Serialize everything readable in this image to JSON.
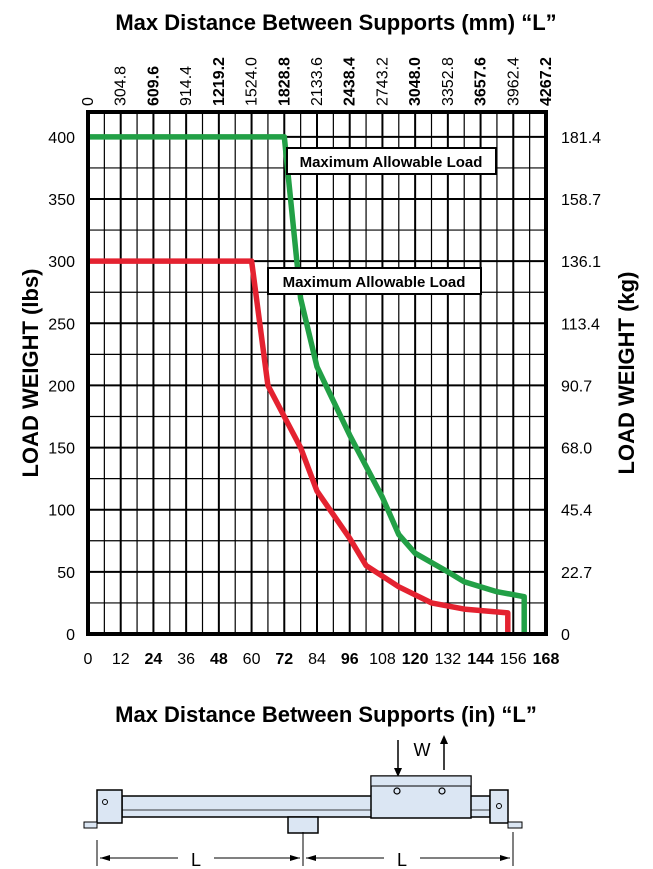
{
  "chart_data": {
    "type": "line",
    "title_top": "Max Distance Between Supports (mm) “L”",
    "xlabel": "Max Distance Between Supports (in) “L”",
    "ylabel_left": "LOAD WEIGHT (lbs)",
    "ylabel_right": "LOAD WEIGHT (kg)",
    "xlim": [
      0,
      168
    ],
    "ylim": [
      0,
      420
    ],
    "grid": true,
    "x_ticks": [
      "0",
      "12",
      "24",
      "36",
      "48",
      "60",
      "72",
      "84",
      "96",
      "108",
      "120",
      "132",
      "144",
      "156",
      "168"
    ],
    "x_ticks_bold": [
      false,
      false,
      true,
      false,
      true,
      false,
      true,
      false,
      true,
      false,
      true,
      false,
      true,
      false,
      true
    ],
    "x_ticks_top": [
      "0",
      "304.8",
      "609.6",
      "914.4",
      "1219.2",
      "1524.0",
      "1828.8",
      "2133.6",
      "2438.4",
      "2743.2",
      "3048.0",
      "3352.8",
      "3657.6",
      "3962.4",
      "4267.2"
    ],
    "x_ticks_top_bold": [
      false,
      false,
      true,
      false,
      true,
      false,
      true,
      false,
      true,
      false,
      true,
      false,
      true,
      false,
      true
    ],
    "y_ticks_left": [
      "0",
      "50",
      "100",
      "150",
      "200",
      "250",
      "300",
      "350",
      "400"
    ],
    "y_ticks_right": [
      "0",
      "22.7",
      "45.4",
      "68.0",
      "90.7",
      "113.4",
      "136.1",
      "158.7",
      "181.4"
    ],
    "series": [
      {
        "label": "Maximum Allowable Load",
        "color": "#22a046",
        "points": [
          [
            0,
            400
          ],
          [
            72,
            400
          ],
          [
            78,
            270
          ],
          [
            84,
            215
          ],
          [
            96,
            160
          ],
          [
            108,
            110
          ],
          [
            114,
            80
          ],
          [
            120,
            65
          ],
          [
            132,
            50
          ],
          [
            138,
            42
          ],
          [
            150,
            34
          ],
          [
            160,
            30
          ],
          [
            160,
            0
          ]
        ]
      },
      {
        "label": "Maximum Allowable Load",
        "color": "#e42230",
        "points": [
          [
            0,
            300
          ],
          [
            60,
            300
          ],
          [
            66,
            200
          ],
          [
            78,
            150
          ],
          [
            84,
            115
          ],
          [
            96,
            77
          ],
          [
            102,
            55
          ],
          [
            114,
            38
          ],
          [
            126,
            25
          ],
          [
            138,
            20
          ],
          [
            154,
            17
          ],
          [
            154,
            0
          ]
        ]
      }
    ]
  },
  "diagram": {
    "force_label": "W",
    "span_label": "L"
  }
}
